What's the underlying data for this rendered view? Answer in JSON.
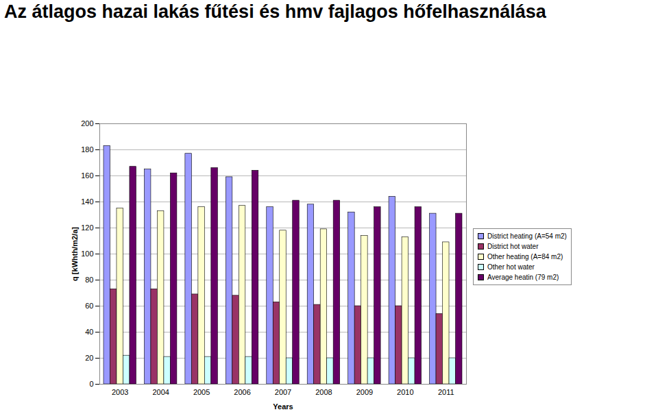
{
  "chart_data": {
    "type": "bar",
    "title": "Az átlagos hazai lakás fűtési és hmv fajlagos hőfelhasználása",
    "x_label": "Years",
    "y_label": "q [kWhth/m2/a]",
    "categories": [
      "2003",
      "2004",
      "2005",
      "2006",
      "2007",
      "2008",
      "2009",
      "2010",
      "2011"
    ],
    "series": [
      {
        "name": "District heating (A=54 m2)",
        "color": "#9999ff",
        "values": [
          183,
          165,
          177,
          159,
          136,
          138,
          132,
          144,
          131
        ]
      },
      {
        "name": "District hot water",
        "color": "#993366",
        "values": [
          73,
          73,
          69,
          68,
          63,
          61,
          60,
          60,
          54
        ]
      },
      {
        "name": "Other heating (A=84 m2)",
        "color": "#ffffcc",
        "values": [
          135,
          133,
          136,
          137,
          118,
          119,
          114,
          113,
          109
        ]
      },
      {
        "name": "Other hot water",
        "color": "#ccffff",
        "values": [
          22,
          21,
          21,
          21,
          20,
          20,
          20,
          20,
          20
        ]
      },
      {
        "name": "Average heatin (79 m2)",
        "color": "#660066",
        "values": [
          167,
          162,
          166,
          164,
          141,
          141,
          136,
          136,
          131
        ]
      }
    ],
    "ylim": [
      0,
      200
    ],
    "yticks": [
      0,
      20,
      40,
      60,
      80,
      100,
      120,
      140,
      160,
      180,
      200
    ],
    "grid": true,
    "legend": "right"
  }
}
